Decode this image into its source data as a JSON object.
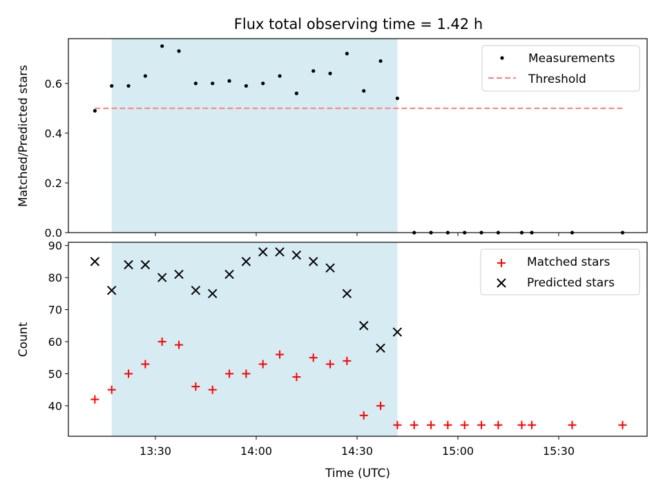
{
  "chart_data": [
    {
      "type": "scatter",
      "title": "Flux total observing time = 1.42 h",
      "xlabel": "",
      "ylabel": "Matched/Predicted stars",
      "ylim": [
        0,
        0.78
      ],
      "yticks": [
        "0.0",
        "0.2",
        "0.4",
        "0.6"
      ],
      "grid": false,
      "legend_position": "top-right",
      "shaded_interval": [
        "13:17",
        "14:42"
      ],
      "shade_color": "#add8e6",
      "series": [
        {
          "name": "Measurements",
          "kind": "points",
          "color": "#000000",
          "x": [
            "13:12",
            "13:17",
            "13:22",
            "13:27",
            "13:32",
            "13:37",
            "13:42",
            "13:47",
            "13:52",
            "13:57",
            "14:02",
            "14:07",
            "14:12",
            "14:17",
            "14:22",
            "14:27",
            "14:32",
            "14:37",
            "14:42",
            "14:47",
            "14:52",
            "14:57",
            "15:02",
            "15:07",
            "15:12",
            "15:19",
            "15:22",
            "15:34",
            "15:49"
          ],
          "y": [
            0.49,
            0.59,
            0.59,
            0.63,
            0.75,
            0.73,
            0.6,
            0.6,
            0.61,
            0.59,
            0.6,
            0.63,
            0.56,
            0.65,
            0.64,
            0.72,
            0.57,
            0.69,
            0.54,
            0.0,
            0.0,
            0.0,
            0.0,
            0.0,
            0.0,
            0.0,
            0.0,
            0.0,
            0.0
          ]
        },
        {
          "name": "Threshold",
          "kind": "dashed-line",
          "color": "#ff7f7f",
          "x": [
            "13:12",
            "15:49"
          ],
          "y": [
            0.5,
            0.5
          ]
        }
      ]
    },
    {
      "type": "scatter",
      "title": "",
      "xlabel": "Time (UTC)",
      "ylabel": "Count",
      "ylim": [
        30.5,
        91
      ],
      "yticks": [
        "40",
        "50",
        "60",
        "70",
        "80",
        "90"
      ],
      "xticks": [
        "13:30",
        "14:00",
        "14:30",
        "15:00",
        "15:30"
      ],
      "grid": false,
      "legend_position": "top-right",
      "shaded_interval": [
        "13:17",
        "14:42"
      ],
      "shade_color": "#add8e6",
      "series": [
        {
          "name": "Matched stars",
          "marker": "+",
          "color": "#ff0000",
          "x": [
            "13:12",
            "13:17",
            "13:22",
            "13:27",
            "13:32",
            "13:37",
            "13:42",
            "13:47",
            "13:52",
            "13:57",
            "14:02",
            "14:07",
            "14:12",
            "14:17",
            "14:22",
            "14:27",
            "14:32",
            "14:37",
            "14:42",
            "14:47",
            "14:52",
            "14:57",
            "15:02",
            "15:07",
            "15:12",
            "15:19",
            "15:22",
            "15:34",
            "15:49"
          ],
          "y": [
            42,
            45,
            50,
            53,
            60,
            59,
            46,
            45,
            50,
            50,
            53,
            56,
            49,
            55,
            53,
            54,
            37,
            40,
            34,
            34,
            34,
            34,
            34,
            34,
            34,
            34,
            34,
            34,
            34
          ]
        },
        {
          "name": "Predicted stars",
          "marker": "x",
          "color": "#000000",
          "x": [
            "13:12",
            "13:17",
            "13:22",
            "13:27",
            "13:32",
            "13:37",
            "13:42",
            "13:47",
            "13:52",
            "13:57",
            "14:02",
            "14:07",
            "14:12",
            "14:17",
            "14:22",
            "14:27",
            "14:32",
            "14:37",
            "14:42"
          ],
          "y": [
            85,
            76,
            84,
            84,
            80,
            81,
            76,
            75,
            81,
            85,
            88,
            88,
            87,
            85,
            83,
            75,
            65,
            58,
            63
          ]
        }
      ]
    }
  ]
}
